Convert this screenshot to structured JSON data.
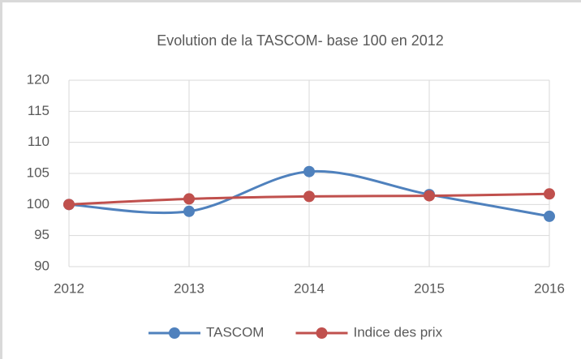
{
  "chart_data": {
    "type": "line",
    "title": "Evolution de la TASCOM- base 100 en 2012",
    "categories": [
      "2012",
      "2013",
      "2014",
      "2015",
      "2016"
    ],
    "series": [
      {
        "name": "TASCOM",
        "color": "#4f81bd",
        "values": [
          100,
          98.9,
          105.3,
          101.6,
          98.1
        ]
      },
      {
        "name": "Indice des prix",
        "color": "#c0504d",
        "values": [
          100,
          100.9,
          101.3,
          101.4,
          101.7
        ]
      }
    ],
    "ylim": [
      90,
      120
    ],
    "yticks": [
      90,
      95,
      100,
      105,
      110,
      115,
      120
    ],
    "grid": true,
    "smooth": true,
    "legend": "bottom"
  }
}
